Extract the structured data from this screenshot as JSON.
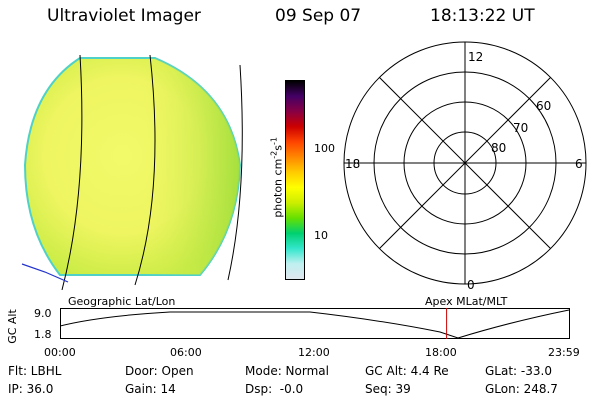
{
  "header": {
    "title": "Ultraviolet Imager",
    "date": "09 Sep 07",
    "time": "18:13:22 UT"
  },
  "colorbar": {
    "label": "photon cm",
    "label_sup1": "-2",
    "label_mid": "s",
    "label_sup2": "-1",
    "tick_100": "100",
    "tick_10": "10",
    "colors": [
      "#dfe6ee",
      "#bff0f0",
      "#33e6cc",
      "#00d070",
      "#66e000",
      "#ccee00",
      "#ffff00",
      "#ffcc00",
      "#ff8800",
      "#ff4400",
      "#cc0000",
      "#880044",
      "#440066",
      "#000000"
    ]
  },
  "polar_plot": {
    "labels": {
      "top": "12",
      "bottom": "0",
      "left": "18",
      "right": "6",
      "ring60": "60",
      "ring70": "70",
      "ring80": "80"
    }
  },
  "timeline": {
    "left_label": "Geographic Lat/Lon",
    "right_label": "Apex MLat/MLT",
    "axis_title": "GC Alt",
    "y_ticks": [
      "9.0",
      "1.8"
    ],
    "x_ticks": [
      "00:00",
      "06:00",
      "12:00",
      "18:00",
      "23:59"
    ],
    "marker_time": "18:13",
    "marker_color": "#cc0000"
  },
  "info": {
    "row1": [
      "Flt: LBHL",
      "Door: Open",
      "Mode: Normal",
      "GC Alt: 4.4 Re",
      "GLat: -33.0"
    ],
    "row2": [
      "IP: 36.0",
      "Gain: 14",
      "Dsp:  -0.0",
      "Seq: 39",
      "GLon: 248.7"
    ]
  }
}
